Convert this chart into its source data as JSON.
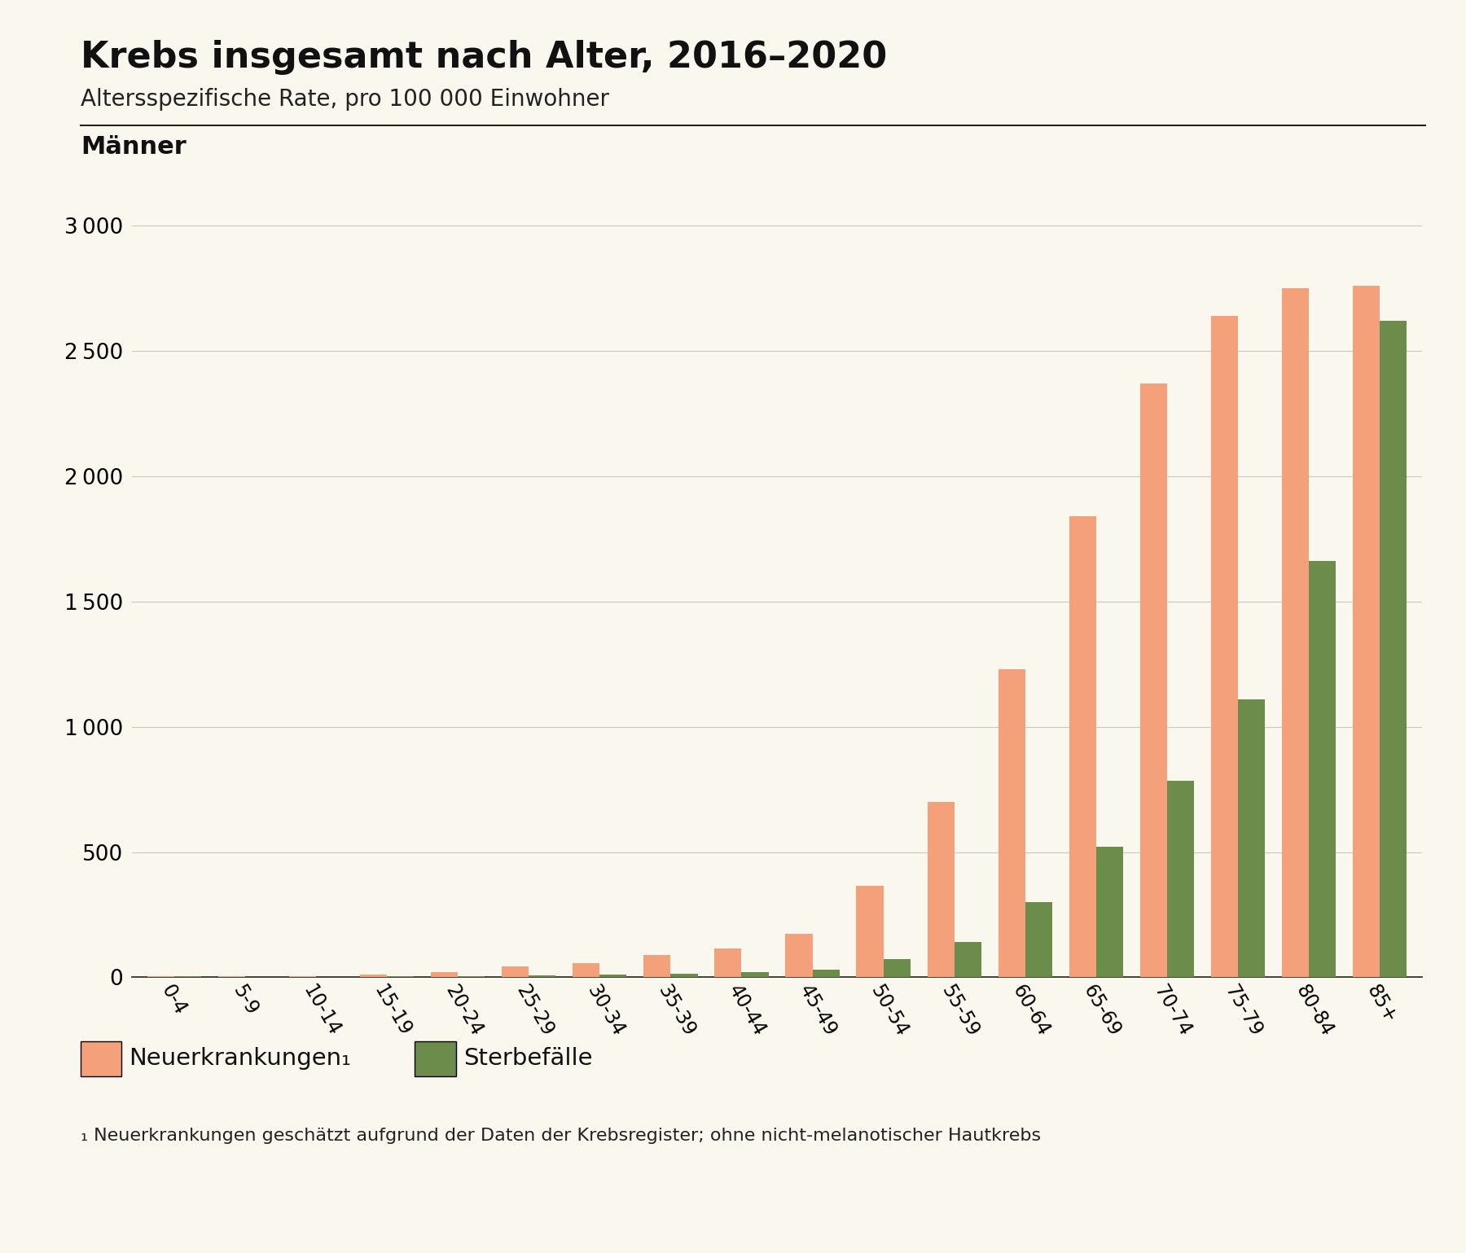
{
  "title": "Krebs insgesamt nach Alter, 2016–2020",
  "subtitle": "Altersspezifische Rate, pro 100 000 Einwohner",
  "section_label": "Männer",
  "categories": [
    "0-4",
    "5-9",
    "10-14",
    "15-19",
    "20-24",
    "25-29",
    "30-34",
    "35-39",
    "40-44",
    "45-49",
    "50-54",
    "55-59",
    "60-64",
    "65-69",
    "70-74",
    "75-79",
    "80-84",
    "85+"
  ],
  "neuerkrankungen": [
    5,
    3,
    4,
    10,
    22,
    45,
    58,
    88,
    115,
    175,
    365,
    700,
    1230,
    1840,
    2370,
    2640,
    2750,
    2760
  ],
  "sterbefaelle": [
    3,
    2,
    2,
    3,
    5,
    8,
    12,
    15,
    22,
    30,
    72,
    140,
    300,
    520,
    785,
    1110,
    1660,
    2620
  ],
  "neuerkrankungen_color": "#F4A07A",
  "sterbefaelle_color": "#6B8C4A",
  "background_color": "#FAF8EE",
  "ylim": [
    0,
    3000
  ],
  "yticks": [
    0,
    500,
    1000,
    1500,
    2000,
    2500,
    3000
  ],
  "legend_label_neu": "Neuerkrankungen₁",
  "legend_label_ster": "Sterbefälle",
  "footnote": "₁ Neuerkrankungen geschätzt aufgrund der Daten der Krebsregister; ohne nicht-melanotischer Hautkrebs"
}
